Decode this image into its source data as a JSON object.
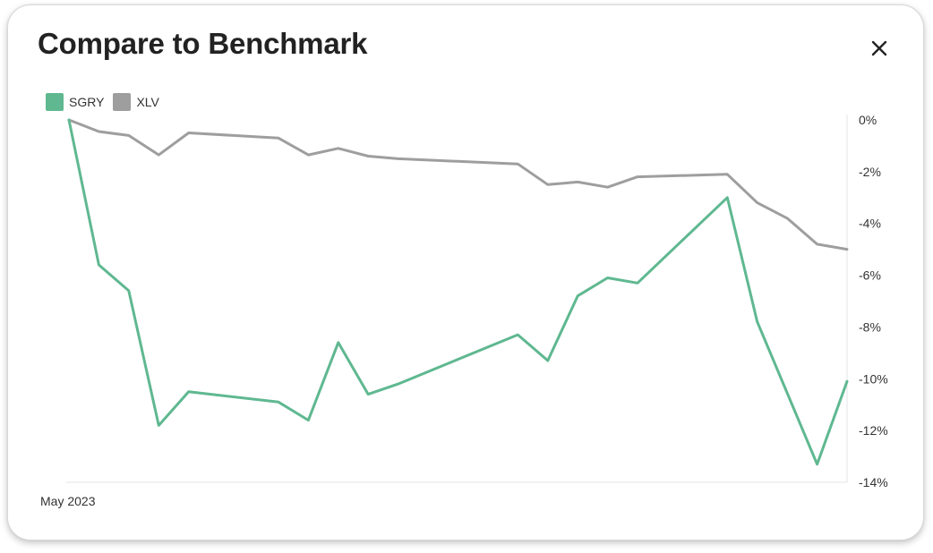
{
  "modal": {
    "title": "Compare to Benchmark",
    "close_icon": "close-icon"
  },
  "chart_data": {
    "type": "line",
    "title": "Compare to Benchmark",
    "x_label_text": "May 2023",
    "ylim": [
      -14,
      0
    ],
    "yticks": [
      0,
      -2,
      -4,
      -6,
      -8,
      -10,
      -12,
      -14
    ],
    "ytick_labels": [
      "0%",
      "-2%",
      "-4%",
      "-6%",
      "-8%",
      "-10%",
      "-12%",
      "-14%"
    ],
    "y_axis_position": "right",
    "grid": false,
    "legend_position": "top-left",
    "n_points": 26,
    "series": [
      {
        "name": "SGRY",
        "color": "#5fb890",
        "points": [
          [
            0,
            0.0
          ],
          [
            1,
            -5.6
          ],
          [
            2,
            -6.6
          ],
          [
            3,
            -11.8
          ],
          [
            4,
            -10.5
          ],
          [
            7,
            -10.9
          ],
          [
            8,
            -11.6
          ],
          [
            9,
            -8.6
          ],
          [
            10,
            -10.6
          ],
          [
            11,
            -10.2
          ],
          [
            15,
            -8.3
          ],
          [
            16,
            -9.3
          ],
          [
            17,
            -6.8
          ],
          [
            18,
            -6.1
          ],
          [
            19,
            -6.3
          ],
          [
            22,
            -3.0
          ],
          [
            23,
            -7.8
          ],
          [
            25,
            -13.3
          ],
          [
            26,
            -10.1
          ]
        ]
      },
      {
        "name": "XLV",
        "color": "#9e9e9e",
        "points": [
          [
            0,
            0.0
          ],
          [
            1,
            -0.45
          ],
          [
            2,
            -0.6
          ],
          [
            3,
            -1.35
          ],
          [
            4,
            -0.5
          ],
          [
            7,
            -0.7
          ],
          [
            8,
            -1.35
          ],
          [
            9,
            -1.1
          ],
          [
            10,
            -1.4
          ],
          [
            11,
            -1.5
          ],
          [
            15,
            -1.7
          ],
          [
            16,
            -2.5
          ],
          [
            17,
            -2.4
          ],
          [
            18,
            -2.6
          ],
          [
            19,
            -2.2
          ],
          [
            22,
            -2.1
          ],
          [
            23,
            -3.2
          ],
          [
            24,
            -3.8
          ],
          [
            25,
            -4.8
          ],
          [
            26,
            -5.0
          ]
        ]
      }
    ]
  }
}
